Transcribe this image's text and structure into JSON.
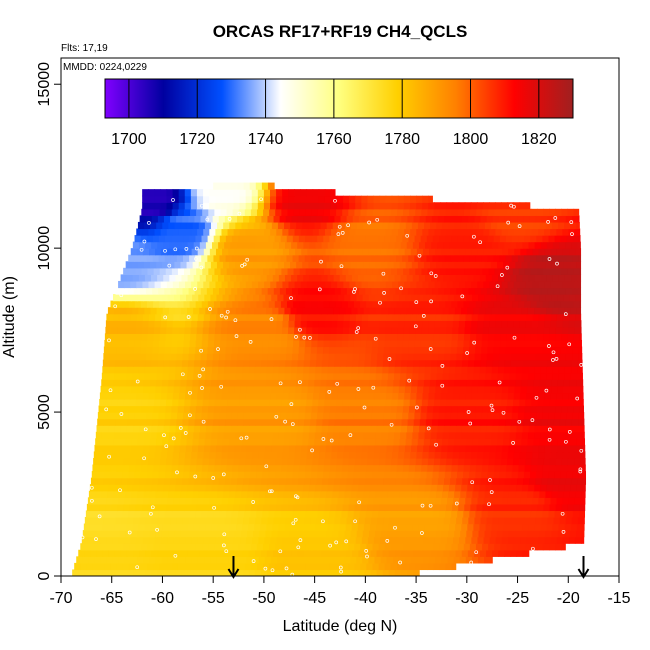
{
  "chart_data": {
    "type": "heatmap",
    "title": "ORCAS RF17+RF19 CH4_QCLS",
    "xlabel": "Latitude (deg N)",
    "ylabel": "Altitude (m)",
    "xlim": [
      -70,
      -15
    ],
    "ylim": [
      0,
      15800
    ],
    "x_ticks": [
      -70,
      -65,
      -60,
      -55,
      -50,
      -45,
      -40,
      -35,
      -30,
      -25,
      -20,
      -15
    ],
    "y_ticks": [
      0,
      5000,
      10000,
      15000
    ],
    "annotations": [
      "Flts: 17,19",
      "MMDD: 0224,0229"
    ],
    "colorbar": {
      "range": [
        1693,
        1830
      ],
      "ticks": [
        1700,
        1720,
        1740,
        1760,
        1780,
        1800,
        1820
      ],
      "colors": [
        "#8000ff",
        "#0000a0",
        "#0050ff",
        "#ffffff",
        "#ffff80",
        "#ffd000",
        "#ff8000",
        "#ff0000",
        "#a02020"
      ]
    },
    "arrows_lat": [
      -53,
      -18.5
    ],
    "envelope": [
      {
        "alt": 0,
        "lat_min": -69,
        "lat_max": -36.5
      },
      {
        "alt": 1000,
        "lat_min": -68,
        "lat_max": -18.5
      },
      {
        "alt": 3000,
        "lat_min": -67,
        "lat_max": -18.3
      },
      {
        "alt": 6000,
        "lat_min": -66,
        "lat_max": -18.6
      },
      {
        "alt": 8000,
        "lat_min": -65.5,
        "lat_max": -18.8
      },
      {
        "alt": 10000,
        "lat_min": -63,
        "lat_max": -18.8
      },
      {
        "alt": 11200,
        "lat_min": -62,
        "lat_max": -19
      },
      {
        "alt": 11700,
        "lat_min": -62,
        "lat_max": -43
      },
      {
        "alt": 11900,
        "lat_min": -55,
        "lat_max": -49
      }
    ],
    "field_anchors": [
      {
        "lat": -67,
        "alt": 500,
        "value": 1775
      },
      {
        "lat": -55,
        "alt": 500,
        "value": 1776
      },
      {
        "lat": -45,
        "alt": 500,
        "value": 1780
      },
      {
        "lat": -35,
        "alt": 1500,
        "value": 1790
      },
      {
        "lat": -25,
        "alt": 2000,
        "value": 1808
      },
      {
        "lat": -20,
        "alt": 3000,
        "value": 1815
      },
      {
        "lat": -65,
        "alt": 5000,
        "value": 1778
      },
      {
        "lat": -50,
        "alt": 5000,
        "value": 1790
      },
      {
        "lat": -40,
        "alt": 5000,
        "value": 1796
      },
      {
        "lat": -30,
        "alt": 5000,
        "value": 1810
      },
      {
        "lat": -20,
        "alt": 5000,
        "value": 1815
      },
      {
        "lat": -64,
        "alt": 7500,
        "value": 1785
      },
      {
        "lat": -50,
        "alt": 7500,
        "value": 1795
      },
      {
        "lat": -45,
        "alt": 8200,
        "value": 1812
      },
      {
        "lat": -35,
        "alt": 7500,
        "value": 1808
      },
      {
        "lat": -25,
        "alt": 7500,
        "value": 1815
      },
      {
        "lat": -22,
        "alt": 9000,
        "value": 1825
      },
      {
        "lat": -64,
        "alt": 9500,
        "value": 1735
      },
      {
        "lat": -58,
        "alt": 10500,
        "value": 1730
      },
      {
        "lat": -52,
        "alt": 10000,
        "value": 1790
      },
      {
        "lat": -40,
        "alt": 10000,
        "value": 1798
      },
      {
        "lat": -30,
        "alt": 10000,
        "value": 1810
      },
      {
        "lat": -61,
        "alt": 11500,
        "value": 1705
      },
      {
        "lat": -54,
        "alt": 11800,
        "value": 1745
      },
      {
        "lat": -46,
        "alt": 11400,
        "value": 1815
      },
      {
        "lat": -25,
        "alt": 11000,
        "value": 1805
      }
    ]
  }
}
